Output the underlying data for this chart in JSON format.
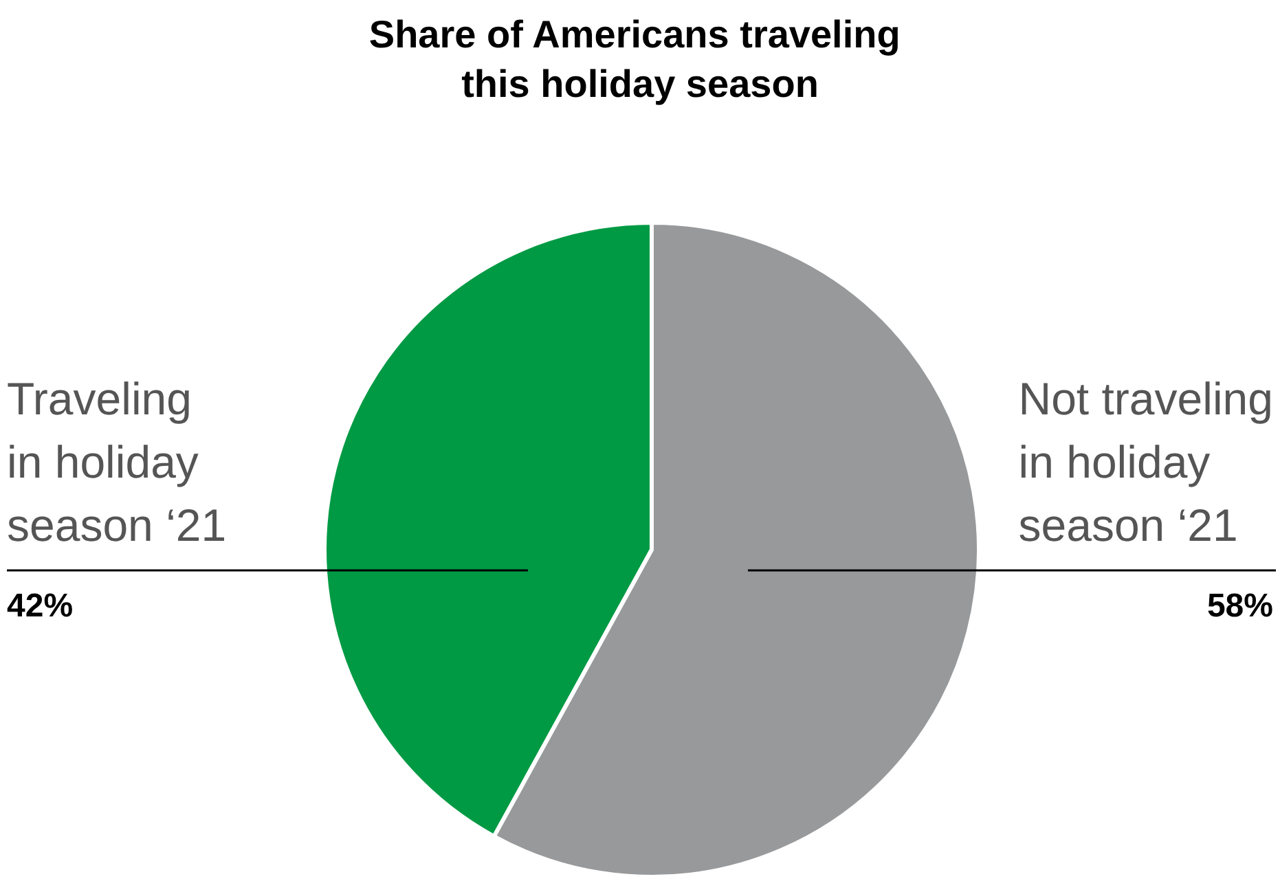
{
  "chart_data": {
    "type": "pie",
    "title": "Share of Americans traveling this holiday season",
    "categories": [
      "Traveling in holiday season ‘21",
      "Not traveling in holiday season ‘21"
    ],
    "values": [
      42,
      58
    ],
    "colors": [
      "#009a44",
      "#97999b"
    ],
    "value_labels": [
      "42%",
      "58%"
    ],
    "legend": false
  }
}
